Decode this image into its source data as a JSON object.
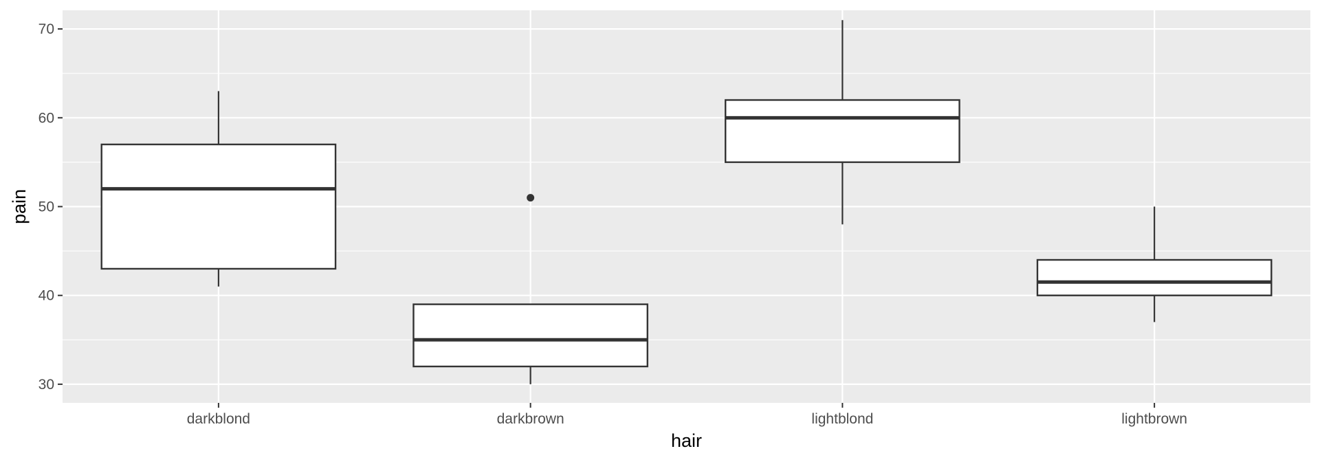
{
  "chart_data": {
    "type": "box",
    "xlabel": "hair",
    "ylabel": "pain",
    "ylim": [
      27.9,
      72.1
    ],
    "yticks": [
      30,
      40,
      50,
      60,
      70
    ],
    "grid": true,
    "categories": [
      "darkblond",
      "darkbrown",
      "lightblond",
      "lightbrown"
    ],
    "boxes": [
      {
        "category": "darkblond",
        "lower_whisker": 41,
        "q1": 43,
        "median": 52,
        "q3": 57,
        "upper_whisker": 63,
        "outliers": []
      },
      {
        "category": "darkbrown",
        "lower_whisker": 30,
        "q1": 32,
        "median": 35,
        "q3": 39,
        "upper_whisker": 39,
        "outliers": [
          51
        ]
      },
      {
        "category": "lightblond",
        "lower_whisker": 48,
        "q1": 55,
        "median": 60,
        "q3": 62,
        "upper_whisker": 71,
        "outliers": []
      },
      {
        "category": "lightbrown",
        "lower_whisker": 37,
        "q1": 40,
        "median": 41.5,
        "q3": 44,
        "upper_whisker": 50,
        "outliers": []
      }
    ]
  },
  "colors": {
    "panel_background": "#EBEBEB",
    "grid_major": "#FFFFFF",
    "box_fill": "#FFFFFF",
    "box_line": "#333333",
    "tick_text": "#4D4D4D",
    "tick_mark": "#333333",
    "axis_title": "#000000"
  }
}
